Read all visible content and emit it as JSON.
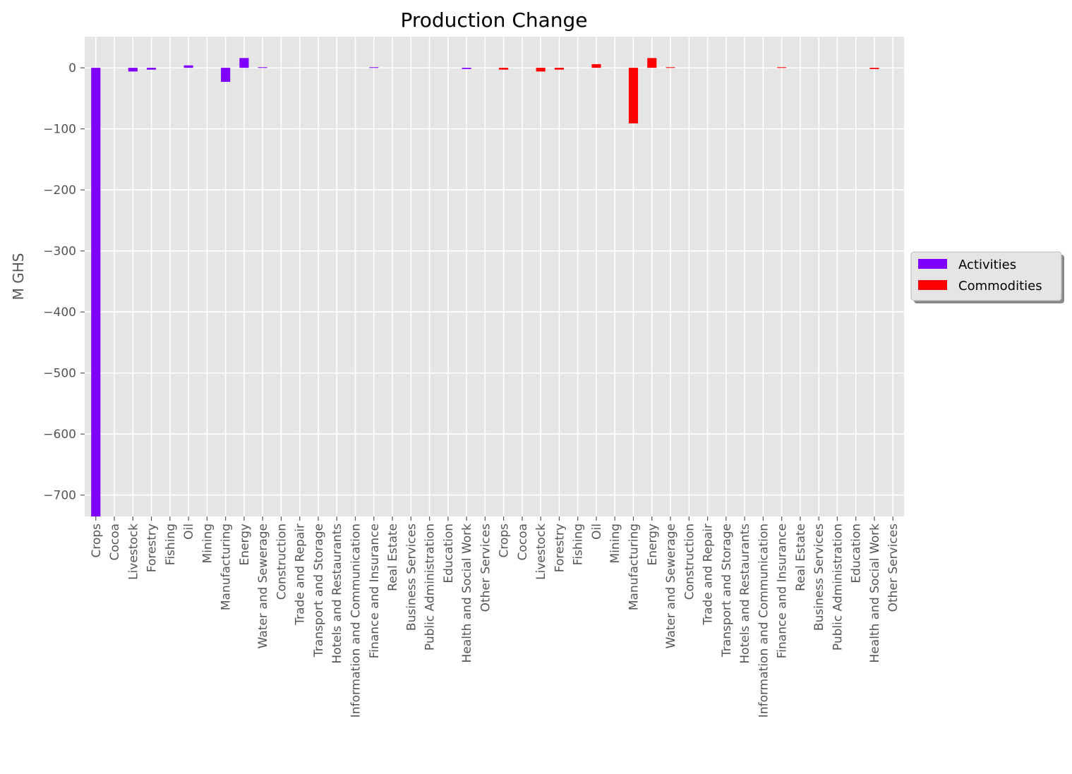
{
  "chart_data": {
    "type": "bar",
    "title": "Production Change",
    "xlabel": "",
    "ylabel": "M GHS",
    "ylim": [
      -735,
      51
    ],
    "yticks": [
      0,
      -100,
      -200,
      -300,
      -400,
      -500,
      -600,
      -700
    ],
    "ytick_labels": [
      "0",
      "−100",
      "−200",
      "−300",
      "−400",
      "−500",
      "−600",
      "−700"
    ],
    "grid": true,
    "legend_position": "right",
    "categories": [
      "Crops",
      "Cocoa",
      "Livestock",
      "Forestry",
      "Fishing",
      "Oil",
      "Mining",
      "Manufacturing",
      "Energy",
      "Water and Sewerage",
      "Construction",
      "Trade and Repair",
      "Transport and Storage",
      "Hotels and Restaurants",
      "Information and Communication",
      "Finance and Insurance",
      "Real Estate",
      "Business Services",
      "Public Administration",
      "Education",
      "Health and Social Work",
      "Other Services",
      "Crops",
      "Cocoa",
      "Livestock",
      "Forestry",
      "Fishing",
      "Oil",
      "Mining",
      "Manufacturing",
      "Energy",
      "Water and Sewerage",
      "Construction",
      "Trade and Repair",
      "Transport and Storage",
      "Hotels and Restaurants",
      "Information and Communication",
      "Finance and Insurance",
      "Real Estate",
      "Business Services",
      "Public Administration",
      "Education",
      "Health and Social Work",
      "Other Services"
    ],
    "series": [
      {
        "name": "Activities",
        "color": "#8000ff",
        "values": [
          -735,
          0,
          -6,
          -3,
          0,
          4,
          0,
          -23,
          16,
          1,
          0,
          0,
          0,
          0,
          0,
          1,
          0,
          0,
          0,
          0,
          -2,
          0,
          0,
          0,
          0,
          0,
          0,
          0,
          0,
          0,
          0,
          0,
          0,
          0,
          0,
          0,
          0,
          0,
          0,
          0,
          0,
          0,
          0,
          0
        ]
      },
      {
        "name": "Commodities",
        "color": "#ff0000",
        "values": [
          0,
          0,
          0,
          0,
          0,
          0,
          0,
          0,
          0,
          0,
          0,
          0,
          0,
          0,
          0,
          0,
          0,
          0,
          0,
          0,
          0,
          0,
          -3,
          0,
          -6,
          -3,
          0,
          6,
          0,
          -91,
          16,
          1,
          0,
          0,
          0,
          0,
          0,
          1,
          0,
          0,
          0,
          0,
          -2,
          0
        ]
      }
    ]
  }
}
